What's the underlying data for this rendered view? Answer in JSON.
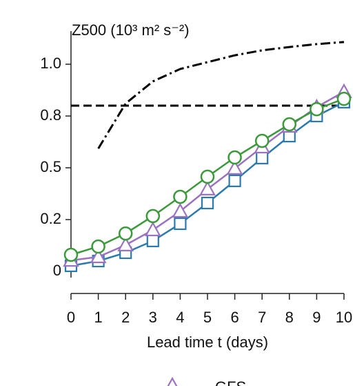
{
  "chart_data": {
    "type": "line",
    "title": "Z500 (10³ m² s⁻²)",
    "x_label": "Lead time t (days)",
    "xlim": [
      0,
      10
    ],
    "xticks": [
      0,
      1,
      2,
      3,
      4,
      5,
      6,
      7,
      8,
      9,
      10
    ],
    "ylim": [
      -0.03,
      1.16
    ],
    "yticks": [
      0,
      {
        "value": 0.25,
        "label": "0.2"
      },
      {
        "value": 0.5,
        "label": "0.5"
      },
      {
        "value": 0.75,
        "label": "0.8"
      },
      {
        "value": 1.0,
        "label": "1.0"
      }
    ],
    "series": [
      {
        "color": "#000000",
        "linestyle": "dashed",
        "x": [
          0,
          10
        ],
        "values": [
          0.8,
          0.8
        ]
      },
      {
        "color": "#000000",
        "linestyle": "dashdot",
        "x": [
          1,
          2,
          3,
          4,
          5,
          6,
          7,
          8,
          9,
          10
        ],
        "values": [
          0.593,
          0.81,
          0.917,
          0.977,
          1.01,
          1.043,
          1.067,
          1.083,
          1.097,
          1.107
        ]
      },
      {
        "color": "#2a7ab0",
        "marker": "square",
        "x": [
          0,
          1,
          2,
          3,
          4,
          5,
          6,
          7,
          8,
          9,
          10
        ],
        "values": [
          0.027,
          0.05,
          0.09,
          0.147,
          0.23,
          0.33,
          0.437,
          0.547,
          0.653,
          0.75,
          0.817
        ]
      },
      {
        "name": "GFS",
        "color": "#9b72c0",
        "marker": "triangle",
        "x": [
          0,
          1,
          2,
          3,
          4,
          5,
          6,
          7,
          8,
          9,
          10
        ],
        "values": [
          0.053,
          0.07,
          0.127,
          0.2,
          0.29,
          0.397,
          0.497,
          0.6,
          0.7,
          0.793,
          0.867
        ]
      },
      {
        "color": "#3a9a3a",
        "marker": "circle",
        "x": [
          0,
          1,
          2,
          3,
          4,
          5,
          6,
          7,
          8,
          9,
          10
        ],
        "values": [
          0.08,
          0.12,
          0.183,
          0.267,
          0.36,
          0.457,
          0.55,
          0.63,
          0.71,
          0.783,
          0.833
        ]
      }
    ]
  }
}
